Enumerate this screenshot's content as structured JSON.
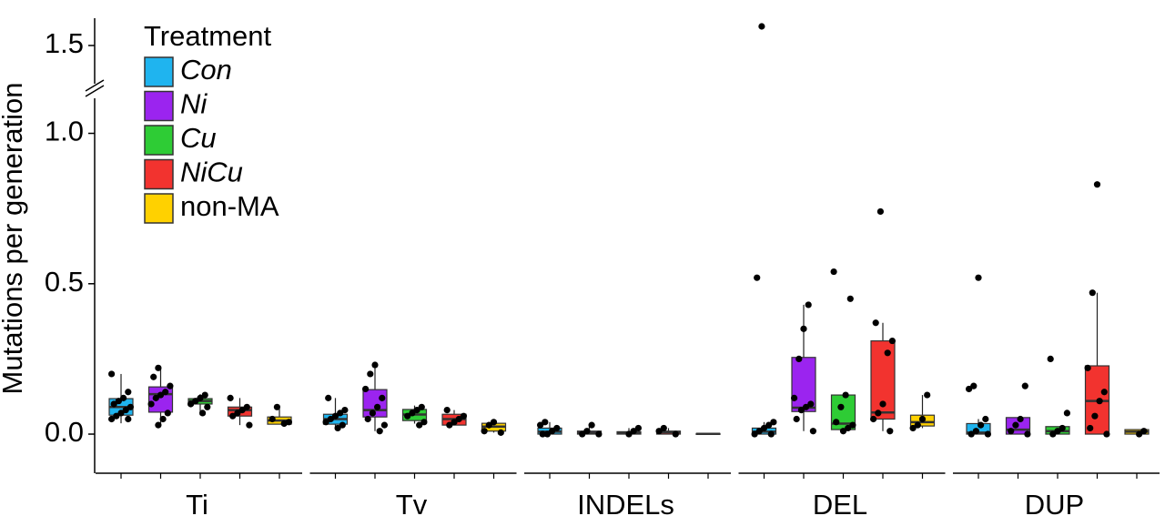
{
  "chart_data": {
    "type": "box",
    "ylabel": "Mutations per generation",
    "ylim": [
      -0.13,
      1.6
    ],
    "ybreak": [
      1.05,
      1.45
    ],
    "yticks": [
      {
        "value": 0,
        "label": "0.0"
      },
      0.5,
      {
        "value": 1,
        "label": "1.0"
      },
      1.5
    ],
    "categories": [
      "Ti",
      "Tv",
      "INDELs",
      "DEL",
      "DUP"
    ],
    "legend_title": "Treatment",
    "legend_position": "top-left",
    "series": [
      {
        "name": "Con",
        "color": "#1fb4ef",
        "italic": true,
        "boxes": [
          {
            "min": 0.036,
            "q1": 0.063,
            "median": 0.09,
            "q3": 0.118,
            "max": 0.2,
            "points": [
              0.2,
              0.14,
              0.12,
              0.11,
              0.1,
              0.09,
              0.08,
              0.07,
              0.06,
              0.05,
              0.05
            ]
          },
          {
            "min": 0.02,
            "q1": 0.033,
            "median": 0.05,
            "q3": 0.066,
            "max": 0.12,
            "points": [
              0.12,
              0.08,
              0.07,
              0.06,
              0.05,
              0.04,
              0.03,
              0.02
            ]
          },
          {
            "min": 0,
            "q1": 0,
            "median": 0.008,
            "q3": 0.02,
            "max": 0.04,
            "points": [
              0.04,
              0.03,
              0.02,
              0.01,
              0,
              0
            ]
          },
          {
            "min": 0,
            "q1": 0,
            "median": 0.008,
            "q3": 0.02,
            "max": 0.04,
            "points": [
              1.57,
              0.52,
              0.04,
              0.03,
              0.02,
              0.01,
              0,
              0
            ]
          },
          {
            "min": 0,
            "q1": 0,
            "median": 0.005,
            "q3": 0.035,
            "max": 0.05,
            "points": [
              0.52,
              0.16,
              0.15,
              0.05,
              0.03,
              0.01,
              0,
              0
            ]
          }
        ]
      },
      {
        "name": "Ni",
        "color": "#9b24ef",
        "italic": true,
        "boxes": [
          {
            "min": 0.033,
            "q1": 0.073,
            "median": 0.133,
            "q3": 0.157,
            "max": 0.22,
            "points": [
              0.22,
              0.19,
              0.16,
              0.14,
              0.13,
              0.12,
              0.1,
              0.07,
              0.05,
              0.03
            ]
          },
          {
            "min": 0.01,
            "q1": 0.057,
            "median": 0.08,
            "q3": 0.148,
            "max": 0.23,
            "points": [
              0.23,
              0.2,
              0.15,
              0.12,
              0.09,
              0.07,
              0.05,
              0.03,
              0.01
            ]
          },
          {
            "min": 0,
            "q1": 0,
            "median": 0.005,
            "q3": 0.01,
            "max": 0.03,
            "points": [
              0.03,
              0.01,
              0,
              0
            ]
          },
          {
            "min": 0.01,
            "q1": 0.075,
            "median": 0.088,
            "q3": 0.255,
            "max": 0.43,
            "points": [
              0.43,
              0.35,
              0.25,
              0.12,
              0.1,
              0.09,
              0.08,
              0.05,
              0.01
            ]
          },
          {
            "min": 0,
            "q1": 0,
            "median": 0.015,
            "q3": 0.055,
            "max": 0.055,
            "points": [
              0.16,
              0.05,
              0.03,
              0.01,
              0
            ]
          }
        ]
      },
      {
        "name": "Cu",
        "color": "#2ecc35",
        "italic": true,
        "boxes": [
          {
            "min": 0.063,
            "q1": 0.1,
            "median": 0.11,
            "q3": 0.118,
            "max": 0.133,
            "points": [
              0.13,
              0.12,
              0.11,
              0.1,
              0.09,
              0.07
            ]
          },
          {
            "min": 0.035,
            "q1": 0.045,
            "median": 0.065,
            "q3": 0.082,
            "max": 0.095,
            "points": [
              0.09,
              0.08,
              0.07,
              0.06,
              0.04,
              0.03
            ]
          },
          {
            "min": 0,
            "q1": 0,
            "median": 0.003,
            "q3": 0.008,
            "max": 0.02,
            "points": [
              0.02,
              0.01,
              0
            ]
          },
          {
            "min": 0.01,
            "q1": 0.015,
            "median": 0.035,
            "q3": 0.13,
            "max": 0.13,
            "points": [
              0.54,
              0.45,
              0.13,
              0.09,
              0.04,
              0.03,
              0.02,
              0.01
            ]
          },
          {
            "min": 0,
            "q1": 0,
            "median": 0.01,
            "q3": 0.025,
            "max": 0.025,
            "points": [
              0.25,
              0.07,
              0.02,
              0.01,
              0
            ]
          }
        ]
      },
      {
        "name": "NiCu",
        "color": "#f2332f",
        "italic": true,
        "boxes": [
          {
            "min": 0.03,
            "q1": 0.06,
            "median": 0.08,
            "q3": 0.09,
            "max": 0.12,
            "points": [
              0.12,
              0.09,
              0.08,
              0.07,
              0.06,
              0.03
            ]
          },
          {
            "min": 0.03,
            "q1": 0.03,
            "median": 0.05,
            "q3": 0.066,
            "max": 0.08,
            "points": [
              0.08,
              0.06,
              0.05,
              0.04,
              0.03
            ]
          },
          {
            "min": 0,
            "q1": 0,
            "median": 0.006,
            "q3": 0.01,
            "max": 0.02,
            "points": [
              0.02,
              0.01,
              0
            ]
          },
          {
            "min": 0.01,
            "q1": 0.05,
            "median": 0.072,
            "q3": 0.31,
            "max": 0.37,
            "points": [
              0.74,
              0.37,
              0.31,
              0.27,
              0.1,
              0.07,
              0.05,
              0.01
            ]
          },
          {
            "min": 0,
            "q1": 0,
            "median": 0.11,
            "q3": 0.227,
            "max": 0.47,
            "points": [
              0.83,
              0.47,
              0.22,
              0.14,
              0.11,
              0.06,
              0.02,
              0
            ]
          }
        ]
      },
      {
        "name": "non-MA",
        "color": "#ffd100",
        "italic": false,
        "boxes": [
          {
            "min": 0.033,
            "q1": 0.033,
            "median": 0.045,
            "q3": 0.057,
            "max": 0.095,
            "points": [
              0.09,
              0.05,
              0.04,
              0.035
            ]
          },
          {
            "min": 0.005,
            "q1": 0.01,
            "median": 0.025,
            "q3": 0.036,
            "max": 0.045,
            "points": [
              0.04,
              0.03,
              0.01,
              0.005
            ]
          },
          {
            "min": 0,
            "q1": 0,
            "median": 0.001,
            "q3": 0.002,
            "max": 0.002,
            "points": []
          },
          {
            "min": 0.02,
            "q1": 0.027,
            "median": 0.04,
            "q3": 0.063,
            "max": 0.13,
            "points": [
              0.13,
              0.05,
              0.03,
              0.02
            ]
          },
          {
            "min": 0,
            "q1": 0,
            "median": 0.008,
            "q3": 0.015,
            "max": 0.015,
            "points": [
              0.01,
              0
            ]
          }
        ]
      }
    ]
  }
}
